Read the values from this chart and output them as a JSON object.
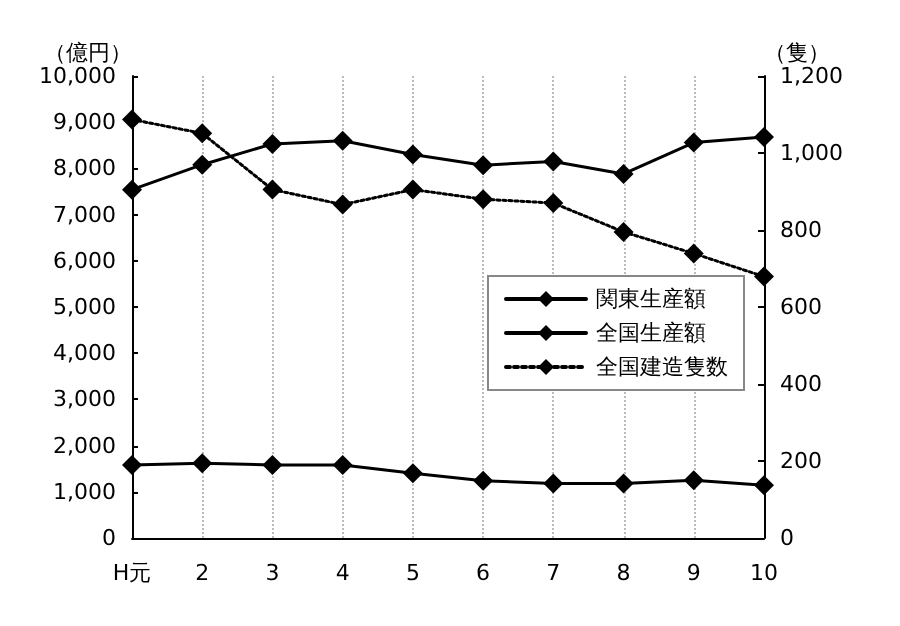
{
  "chart_data": {
    "type": "line",
    "ylabel": "（億円）",
    "y2label": "（隻）",
    "categories": [
      "H元",
      "2",
      "3",
      "4",
      "5",
      "6",
      "7",
      "8",
      "9",
      "10"
    ],
    "series": [
      {
        "name": "関東生産額",
        "color": "#000000",
        "values": [
          1580,
          1620,
          1580,
          1580,
          1400,
          1240,
          1180,
          1180,
          1250,
          1140
        ]
      },
      {
        "name": "全国生産額",
        "color": "#000000",
        "values": [
          7540,
          8080,
          8530,
          8600,
          8300,
          8070,
          8150,
          7880,
          8560,
          8680
        ]
      },
      {
        "name": "全国建造隻数",
        "color": "#000000",
        "axis": "y2",
        "line_style": "dotted",
        "values": [
          1087,
          1051,
          905,
          866,
          905,
          880,
          870,
          795,
          739,
          679
        ]
      }
    ],
    "ylim": [
      0,
      10000
    ],
    "yticks": [
      0,
      {
        "value": 1000,
        "label": "1,000"
      },
      {
        "value": 2000,
        "label": "2,000"
      },
      {
        "value": 3000,
        "label": "3,000"
      },
      {
        "value": 4000,
        "label": "4,000"
      },
      {
        "value": 5000,
        "label": "5,000"
      },
      {
        "value": 6000,
        "label": "6,000"
      },
      {
        "value": 7000,
        "label": "7,000"
      },
      {
        "value": 8000,
        "label": "8,000"
      },
      {
        "value": 9000,
        "label": "9,000"
      },
      {
        "value": 10000,
        "label": "10,000"
      }
    ],
    "y2lim": [
      0,
      1200
    ],
    "y2ticks": [
      0,
      200,
      400,
      600,
      800,
      {
        "value": 1000,
        "label": "1,000"
      },
      {
        "value": 1200,
        "label": "1,200"
      }
    ],
    "grid": "x",
    "legend": "right",
    "marker": "diamond",
    "line_style": "solid"
  }
}
